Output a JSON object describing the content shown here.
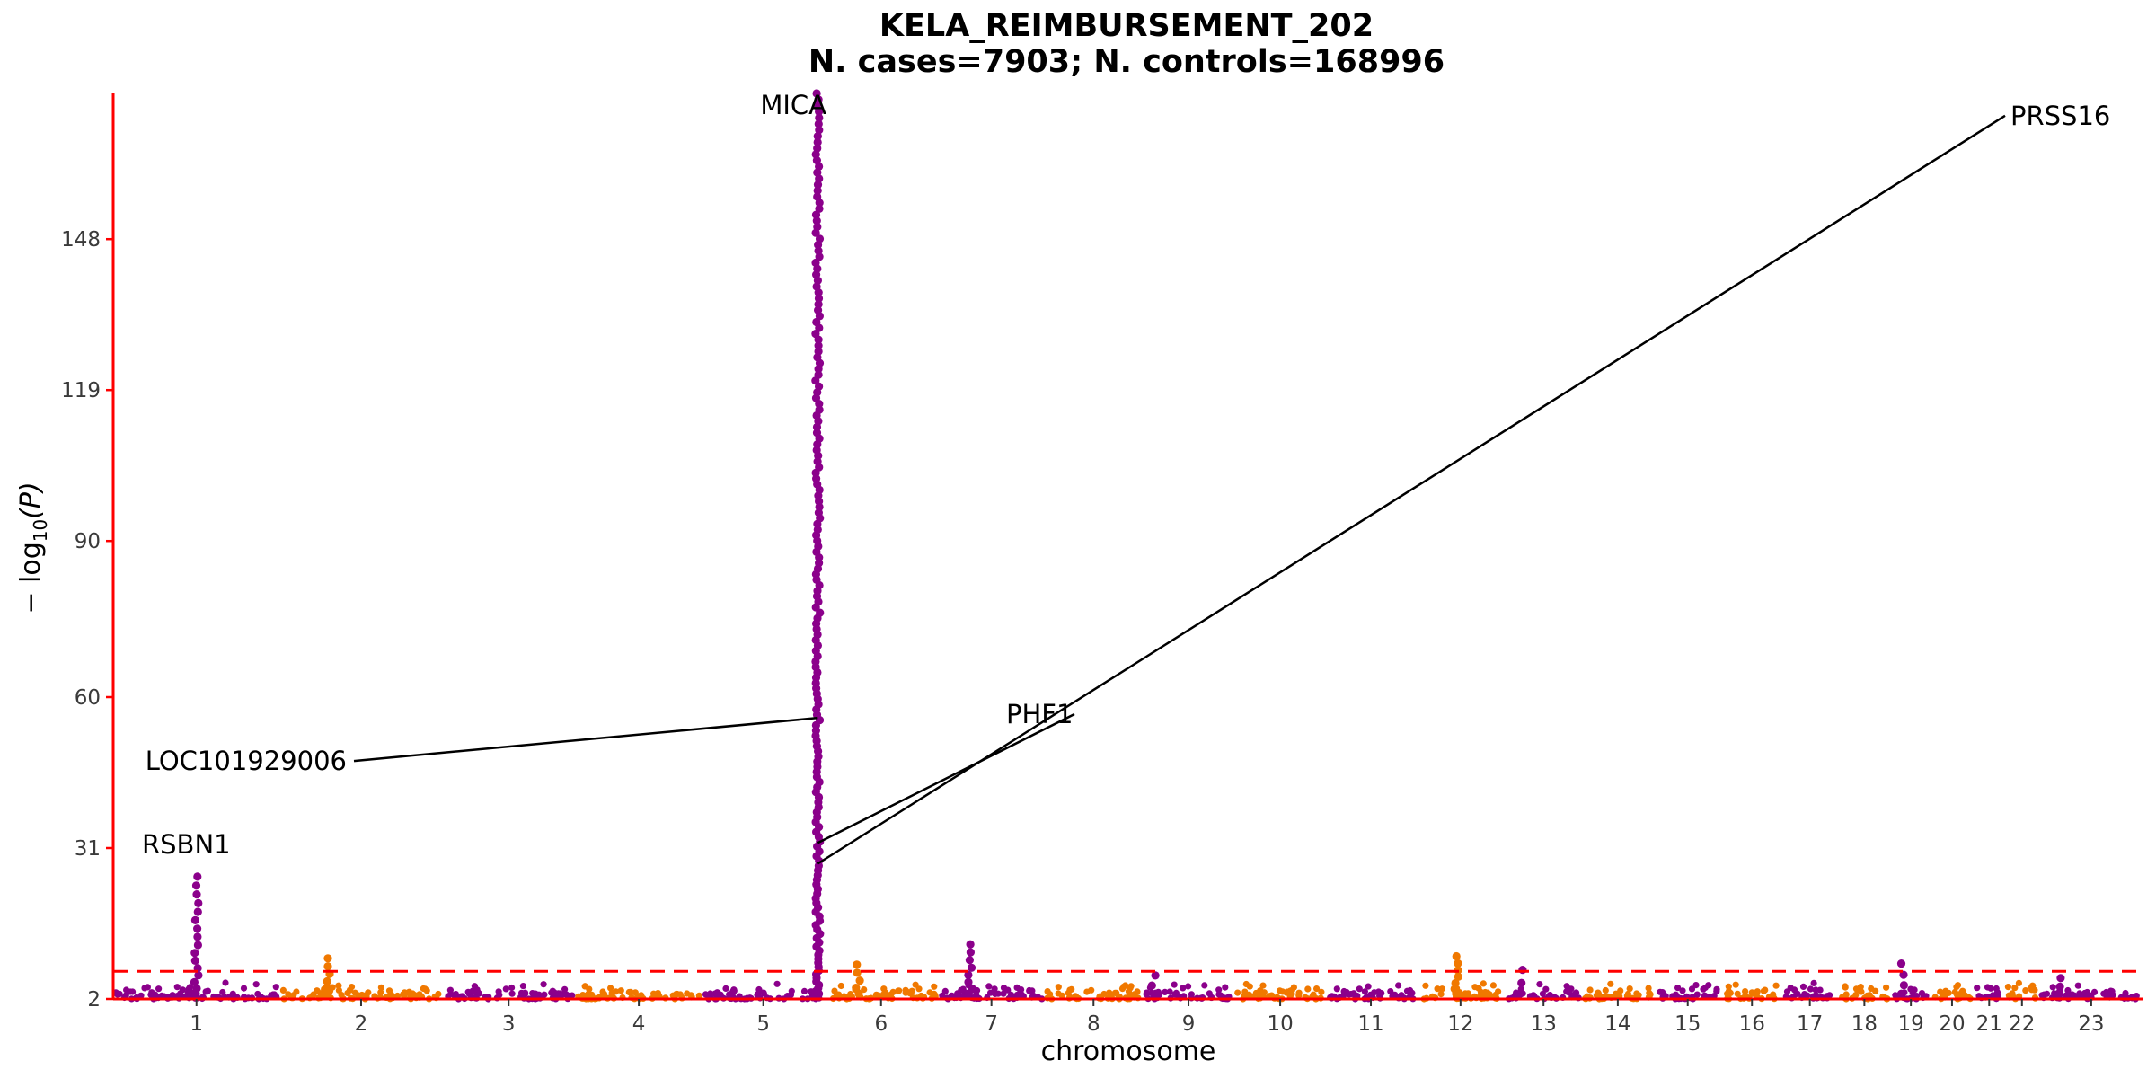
{
  "chart_data": {
    "type": "scatter",
    "title": "KELA_REIMBURSEMENT_202",
    "subtitle": "N. cases=7903; N. controls=168996",
    "xlabel": "chromosome",
    "ylabel": "− log10(P)",
    "ylabel_main": "− log",
    "ylabel_sub": "10",
    "ylabel_tail": "(P)",
    "y_ticks": [
      2,
      31,
      60,
      90,
      119,
      148
    ],
    "ylim": [
      2,
      176
    ],
    "significance_line": 7.3,
    "colors": {
      "odd": "#8B008B",
      "even": "#F07800",
      "axis": "#FF0000",
      "threshold": "#FF0000"
    },
    "chromosomes": [
      {
        "label": "1",
        "length": 249
      },
      {
        "label": "2",
        "length": 243
      },
      {
        "label": "3",
        "length": 198
      },
      {
        "label": "4",
        "length": 191
      },
      {
        "label": "5",
        "length": 181
      },
      {
        "label": "6",
        "length": 171
      },
      {
        "label": "7",
        "length": 159
      },
      {
        "label": "8",
        "length": 146
      },
      {
        "label": "9",
        "length": 138
      },
      {
        "label": "10",
        "length": 136
      },
      {
        "label": "11",
        "length": 135
      },
      {
        "label": "12",
        "length": 133
      },
      {
        "label": "13",
        "length": 115
      },
      {
        "label": "14",
        "length": 107
      },
      {
        "label": "15",
        "length": 102
      },
      {
        "label": "16",
        "length": 90
      },
      {
        "label": "17",
        "length": 83
      },
      {
        "label": "18",
        "length": 80
      },
      {
        "label": "19",
        "length": 59
      },
      {
        "label": "20",
        "length": 64
      },
      {
        "label": "21",
        "length": 47
      },
      {
        "label": "22",
        "length": 51
      },
      {
        "label": "23",
        "length": 156
      }
    ],
    "peaks": [
      {
        "chrom": "1",
        "pos": 0.5,
        "max": 25.5,
        "count": 16
      },
      {
        "chrom": "2",
        "pos": 0.3,
        "max": 9.8,
        "count": 6
      },
      {
        "chrom": "5",
        "pos": 0.95,
        "max": 176,
        "count": 170
      },
      {
        "chrom": "6",
        "pos": 0.3,
        "max": 8.6,
        "count": 5
      },
      {
        "chrom": "7",
        "pos": 0.3,
        "max": 12.5,
        "count": 8
      },
      {
        "chrom": "9",
        "pos": 0.12,
        "max": 6.5,
        "count": 3
      },
      {
        "chrom": "12",
        "pos": 0.45,
        "max": 10.2,
        "count": 7
      },
      {
        "chrom": "13",
        "pos": 0.2,
        "max": 7.6,
        "count": 3
      },
      {
        "chrom": "19",
        "pos": 0.3,
        "max": 8.8,
        "count": 4
      },
      {
        "chrom": "23",
        "pos": 0.2,
        "max": 6.0,
        "count": 3
      }
    ],
    "annotations": [
      {
        "label": "MICA",
        "chrom": "5",
        "pos": 0.95,
        "y": 176,
        "label_y": 172
      },
      {
        "label": "LOC101929006",
        "chrom": "5",
        "pos": 0.95,
        "y": 56,
        "label_y": 46
      },
      {
        "label": "PHF1",
        "chrom": "5",
        "pos": 0.95,
        "y": 32,
        "label_y": 55
      },
      {
        "label": "PRSS16",
        "chrom": "5",
        "pos": 0.95,
        "y": 28,
        "label_y": 170
      },
      {
        "label": "RSBN1",
        "chrom": "1",
        "pos": 0.5,
        "y": 25.5,
        "label_y": 30
      }
    ]
  }
}
